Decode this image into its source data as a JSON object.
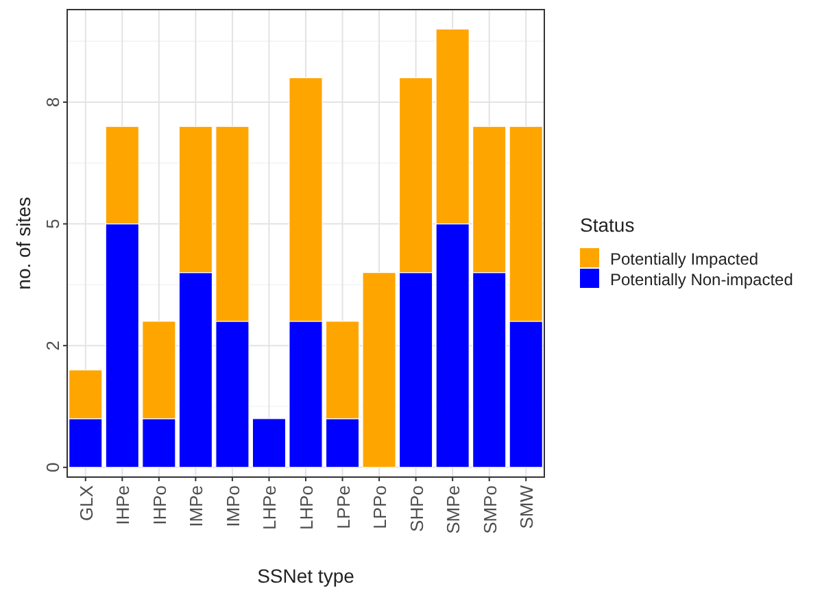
{
  "chart_data": {
    "type": "bar",
    "stacked": true,
    "xlabel": "SSNet type",
    "ylabel": "no. of sites",
    "legend_title": "Status",
    "legend": "right",
    "grid": true,
    "categories": [
      "GLX",
      "IHPe",
      "IHPo",
      "IMPe",
      "IMPo",
      "LHPe",
      "LHPo",
      "LPPe",
      "LPPo",
      "SHPo",
      "SMPe",
      "SMPo",
      "SMW"
    ],
    "series": [
      {
        "name": "Potentially Non-impacted",
        "color": "#0000ff",
        "values": [
          1,
          5,
          1,
          4,
          3,
          1,
          3,
          1,
          0,
          4,
          5,
          4,
          3
        ]
      },
      {
        "name": "Potentially Impacted",
        "color": "#ffa500",
        "values": [
          1,
          2,
          2,
          3,
          4,
          0,
          5,
          2,
          4,
          4,
          4,
          3,
          4
        ]
      }
    ],
    "ylim": [
      -0.2,
      9.4
    ],
    "yticks": [
      0,
      {
        "value": 2.5,
        "label": "2"
      },
      5,
      {
        "value": 7.5,
        "label": "8"
      }
    ]
  }
}
